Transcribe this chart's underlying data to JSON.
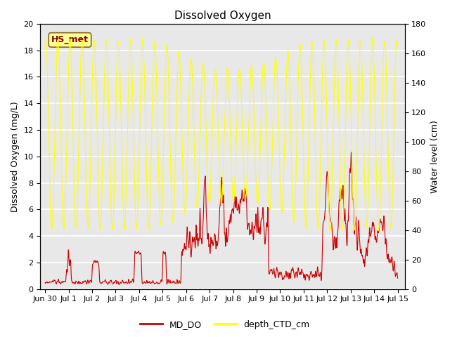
{
  "title": "Dissolved Oxygen",
  "ylabel_left": "Dissolved Oxygen (mg/L)",
  "ylabel_right": "Water level (cm)",
  "ylim_left": [
    0,
    20
  ],
  "ylim_right": [
    0,
    180
  ],
  "yticks_left": [
    0,
    2,
    4,
    6,
    8,
    10,
    12,
    14,
    16,
    18,
    20
  ],
  "yticks_right": [
    0,
    20,
    40,
    60,
    80,
    100,
    120,
    140,
    160,
    180
  ],
  "xtick_labels": [
    "Jun 30",
    "Jul 1",
    "Jul 2",
    "Jul 3",
    "Jul 4",
    "Jul 5",
    "Jul 6",
    "Jul 7",
    "Jul 8",
    "Jul 9",
    "Jul 10",
    "Jul 11",
    "Jul 12",
    "Jul 13",
    "Jul 14",
    "Jul 15"
  ],
  "color_DO": "#cc0000",
  "color_depth": "#ffff00",
  "legend_DO": "MD_DO",
  "legend_depth": "depth_CTD_cm",
  "annotation_text": "HS_met",
  "annotation_color": "#8b0000",
  "annotation_bg": "#ffff99",
  "annotation_edge": "#8b6914",
  "background_color": "#e8e8e8",
  "grid_color": "#ffffff",
  "title_fontsize": 11,
  "label_fontsize": 9,
  "tick_fontsize": 8
}
